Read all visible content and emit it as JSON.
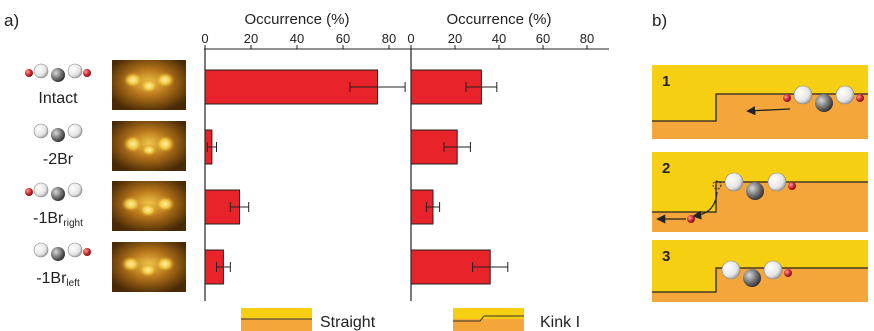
{
  "panel_labels": {
    "a": "a)",
    "b": "b)"
  },
  "row_labels": [
    {
      "main": "Intact",
      "sub": ""
    },
    {
      "main": "-2Br",
      "sub": ""
    },
    {
      "main": "-1Br",
      "sub": "right"
    },
    {
      "main": "-1Br",
      "sub": "left"
    }
  ],
  "legend": {
    "straight": "Straight",
    "kink": "Kink I"
  },
  "steps": [
    "1",
    "2",
    "3"
  ],
  "colors": {
    "bar": "#e8232a",
    "terrace_top": "#f7cf12",
    "terrace_bottom": "#f5a63a",
    "bromine": "#b5242a"
  },
  "chart_data": [
    {
      "type": "bar",
      "orientation": "horizontal",
      "xlabel": "Occurrence (%)",
      "xlim": [
        0,
        90
      ],
      "xticks": [
        0,
        20,
        40,
        60,
        80
      ],
      "categories": [
        "Intact",
        "-2Br",
        "-1Br_right",
        "-1Br_left"
      ],
      "series": [
        {
          "name": "Straight",
          "values": [
            75,
            3,
            15,
            8
          ],
          "errors": [
            12,
            2,
            4,
            3
          ]
        }
      ]
    },
    {
      "type": "bar",
      "orientation": "horizontal",
      "xlabel": "Occurrence (%)",
      "xlim": [
        0,
        90
      ],
      "xticks": [
        0,
        20,
        40,
        60,
        80
      ],
      "categories": [
        "Intact",
        "-2Br",
        "-1Br_right",
        "-1Br_left"
      ],
      "series": [
        {
          "name": "Kink I",
          "values": [
            32,
            21,
            10,
            36
          ],
          "errors": [
            7,
            6,
            3,
            8
          ]
        }
      ]
    }
  ]
}
